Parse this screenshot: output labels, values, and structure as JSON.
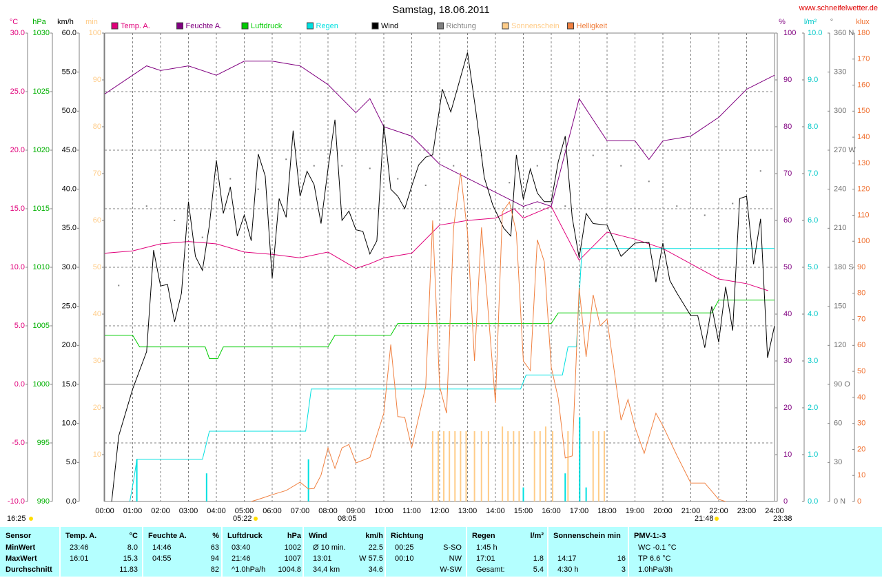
{
  "chart_data": {
    "type": "line",
    "title": "Samstag, 18.06.2011",
    "source": "www.schneifelwetter.de",
    "xlim": [
      0,
      24
    ],
    "xticks": [
      {
        "value": 0,
        "label": "00:00"
      },
      {
        "value": 1,
        "label": "01:00"
      },
      {
        "value": 2,
        "label": "02:00"
      },
      {
        "value": 3,
        "label": "03:00"
      },
      {
        "value": 4,
        "label": "04:00"
      },
      {
        "value": 5,
        "label": "05:00"
      },
      {
        "value": 6,
        "label": "06:00"
      },
      {
        "value": 7,
        "label": "07:00"
      },
      {
        "value": 8,
        "label": "08:00"
      },
      {
        "value": 9,
        "label": "09:00"
      },
      {
        "value": 10,
        "label": "10:00"
      },
      {
        "value": 11,
        "label": "11:00"
      },
      {
        "value": 12,
        "label": "12:00"
      },
      {
        "value": 13,
        "label": "13:00"
      },
      {
        "value": 14,
        "label": "14:00"
      },
      {
        "value": 15,
        "label": "15:00"
      },
      {
        "value": 16,
        "label": "16:00"
      },
      {
        "value": 17,
        "label": "17:00"
      },
      {
        "value": 18,
        "label": "18:00"
      },
      {
        "value": 19,
        "label": "19:00"
      },
      {
        "value": 20,
        "label": "20:00"
      },
      {
        "value": 21,
        "label": "21:00"
      },
      {
        "value": 22,
        "label": "22:00"
      },
      {
        "value": 23,
        "label": "23:00"
      },
      {
        "value": 24,
        "label": "24:00"
      }
    ],
    "grid": true,
    "annotations": [
      "16:25",
      "05:22",
      "08:05",
      "21:48",
      "23:38"
    ],
    "axes": {
      "temp": {
        "label": "°C",
        "color": "#e0007a",
        "lim": [
          -10,
          30
        ],
        "ticks": [
          {
            "value": -10,
            "label": "-10.0"
          },
          {
            "value": -5,
            "label": "-5.0"
          },
          {
            "value": 0,
            "label": "0.0"
          },
          {
            "value": 5,
            "label": "5.0"
          },
          {
            "value": 10,
            "label": "10.0"
          },
          {
            "value": 15,
            "label": "15.0"
          },
          {
            "value": 20,
            "label": "20.0"
          },
          {
            "value": 25,
            "label": "25.0"
          },
          {
            "value": 30,
            "label": "30.0"
          }
        ]
      },
      "hpa": {
        "label": "hPa",
        "color": "#00b000",
        "lim": [
          990,
          1030
        ],
        "ticks": [
          990,
          995,
          1000,
          1005,
          1010,
          1015,
          1020,
          1025,
          1030
        ]
      },
      "kmh": {
        "label": "km/h",
        "color": "#000000",
        "lim": [
          0,
          60
        ],
        "ticks": [
          {
            "value": 0,
            "label": "0.0"
          },
          {
            "value": 5,
            "label": "5.0"
          },
          {
            "value": 10,
            "label": "10.0"
          },
          {
            "value": 15,
            "label": "15.0"
          },
          {
            "value": 20,
            "label": "20.0"
          },
          {
            "value": 25,
            "label": "25.0"
          },
          {
            "value": 30,
            "label": "30.0"
          },
          {
            "value": 35,
            "label": "35.0"
          },
          {
            "value": 40,
            "label": "40.0"
          },
          {
            "value": 45,
            "label": "45.0"
          },
          {
            "value": 50,
            "label": "50.0"
          },
          {
            "value": 55,
            "label": "55.0"
          },
          {
            "value": 60,
            "label": "60.0"
          }
        ]
      },
      "min": {
        "label": "min",
        "color": "#ffcc88",
        "lim": [
          0,
          100
        ],
        "ticks": [
          10,
          20,
          30,
          40,
          50,
          60,
          70,
          80,
          90,
          100
        ]
      },
      "pct": {
        "label": "%",
        "color": "#800080",
        "lim": [
          0,
          100
        ],
        "ticks": [
          0,
          10,
          20,
          30,
          40,
          50,
          60,
          70,
          80,
          90,
          100
        ]
      },
      "lm2": {
        "label": "l/m²",
        "color": "#00c8c8",
        "lim": [
          0,
          10
        ],
        "ticks": [
          {
            "value": 0,
            "label": "0.0"
          },
          {
            "value": 1,
            "label": "1.0"
          },
          {
            "value": 2,
            "label": "2.0"
          },
          {
            "value": 3,
            "label": "3.0"
          },
          {
            "value": 4,
            "label": "4.0"
          },
          {
            "value": 5,
            "label": "5.0"
          },
          {
            "value": 6,
            "label": "6.0"
          },
          {
            "value": 7,
            "label": "7.0"
          },
          {
            "value": 8,
            "label": "8.0"
          },
          {
            "value": 9,
            "label": "9.0"
          },
          {
            "value": 10,
            "label": "10.0"
          }
        ]
      },
      "deg": {
        "label": "°",
        "color": "#707070",
        "lim": [
          0,
          360
        ],
        "ticks": [
          {
            "value": 0,
            "label": "0   N"
          },
          30,
          60,
          {
            "value": 90,
            "label": "90   O"
          },
          120,
          150,
          {
            "value": 180,
            "label": "180  S"
          },
          210,
          240,
          {
            "value": 270,
            "label": "270  W"
          },
          300,
          330,
          {
            "value": 360,
            "label": "360  N"
          }
        ]
      },
      "klux": {
        "label": "klux",
        "color": "#f07030",
        "lim": [
          0,
          180
        ],
        "ticks": [
          0,
          10,
          20,
          30,
          40,
          50,
          60,
          70,
          80,
          90,
          100,
          110,
          120,
          130,
          140,
          150,
          160,
          170,
          180
        ]
      }
    },
    "series": [
      {
        "name": "Temp. A.",
        "color": "#e0007a",
        "axis": "temp",
        "style": "line",
        "x": [
          0,
          1,
          2,
          3,
          4,
          5,
          6,
          7,
          8,
          9,
          9.5,
          10,
          11,
          12,
          13,
          14,
          14.67,
          15,
          16,
          17,
          18,
          19,
          20,
          21,
          22,
          23,
          23.77
        ],
        "values": [
          11.2,
          11.4,
          12.0,
          12.2,
          12.0,
          11.3,
          11.1,
          10.8,
          11.3,
          9.9,
          10.3,
          10.8,
          11.2,
          13.6,
          14.0,
          14.2,
          15.0,
          14.2,
          15.2,
          10.6,
          13.0,
          12.4,
          11.6,
          10.3,
          9.0,
          8.6,
          8.0
        ]
      },
      {
        "name": "Feuchte A.",
        "color": "#800080",
        "axis": "pct",
        "style": "line",
        "x": [
          0,
          1,
          1.5,
          2,
          3,
          4,
          5,
          6,
          7,
          8,
          9,
          9.5,
          10,
          11,
          12,
          13,
          14,
          15,
          15.5,
          16,
          17,
          18,
          19,
          19.5,
          20,
          21,
          22,
          23,
          24
        ],
        "values": [
          87,
          91,
          93,
          92,
          93,
          91,
          94,
          94,
          93,
          89,
          83,
          86,
          80,
          78,
          72,
          69,
          66,
          63,
          64,
          63,
          86,
          77,
          77,
          73,
          77,
          78,
          82,
          88,
          91
        ]
      },
      {
        "name": "Luftdruck",
        "color": "#00cc00",
        "axis": "hpa",
        "style": "line",
        "x": [
          0,
          1,
          1.25,
          3.6,
          3.75,
          4.05,
          4.25,
          8,
          8.25,
          10.25,
          10.5,
          16,
          16.25,
          21.75,
          22,
          24
        ],
        "values": [
          1004.2,
          1004.2,
          1003.2,
          1003.2,
          1002.2,
          1002.2,
          1003.2,
          1003.2,
          1004.2,
          1004.2,
          1005.2,
          1005.2,
          1006.1,
          1006.1,
          1007.2,
          1007.2
        ]
      },
      {
        "name": "Regen",
        "color": "#00e0e0",
        "axis": "lm2",
        "style": "line",
        "x": [
          0.9,
          1.05,
          1.15,
          3.5,
          3.75,
          7.2,
          7.4,
          14.9,
          15.1,
          16.4,
          16.6,
          16.9,
          17.1,
          24
        ],
        "values": [
          0,
          0.5,
          0.9,
          0.9,
          1.5,
          1.5,
          2.4,
          2.4,
          2.7,
          2.7,
          3.3,
          3.3,
          5.4,
          5.4
        ],
        "bars": {
          "x": [
            1.15,
            3.65,
            7.3,
            15.0,
            16.5,
            17.02,
            17.25
          ],
          "values": [
            0.9,
            0.6,
            0.9,
            0.3,
            0.6,
            1.8,
            0.3
          ]
        }
      },
      {
        "name": "Wind",
        "color": "#000000",
        "axis": "kmh",
        "style": "line",
        "x": [
          0.25,
          0.5,
          1,
          1.5,
          1.75,
          2,
          2.25,
          2.5,
          2.75,
          3,
          3.25,
          3.5,
          3.75,
          4,
          4.25,
          4.5,
          4.75,
          5,
          5.25,
          5.5,
          5.75,
          6,
          6.25,
          6.5,
          6.75,
          7,
          7.25,
          7.5,
          7.75,
          8,
          8.25,
          8.5,
          8.75,
          9,
          9.25,
          9.5,
          9.75,
          10,
          10.25,
          10.5,
          10.75,
          11,
          11.25,
          11.5,
          11.75,
          12.1,
          12.4,
          13,
          13.3,
          13.6,
          13.9,
          14.3,
          14.55,
          14.75,
          15,
          15.25,
          15.5,
          15.75,
          16,
          16.25,
          16.5,
          16.75,
          17,
          17.25,
          17.5,
          18,
          18.5,
          19,
          19.5,
          19.75,
          20,
          20.25,
          20.5,
          21,
          21.25,
          21.5,
          21.75,
          22,
          22.25,
          22.5,
          22.75,
          23,
          23.25,
          23.5,
          23.75,
          24
        ],
        "values": [
          0,
          8.4,
          14.4,
          19.2,
          32.2,
          27.6,
          27.8,
          23.0,
          26.7,
          38.4,
          31.4,
          29.6,
          35.4,
          43.7,
          36.9,
          40.3,
          34.0,
          36.7,
          33.4,
          44.5,
          41.7,
          28.6,
          38.8,
          36.4,
          47.5,
          39.1,
          42.3,
          40.6,
          35.6,
          42.6,
          48.9,
          36.0,
          37.2,
          34.8,
          34.6,
          31.7,
          33.4,
          48.3,
          40.0,
          39.1,
          37.5,
          40.4,
          43.1,
          44.1,
          44.4,
          52.8,
          49.9,
          57.5,
          50.0,
          41.5,
          38.0,
          35.0,
          34.0,
          44.4,
          38.7,
          42.6,
          39.5,
          38.4,
          38.4,
          43.5,
          46.8,
          36.4,
          31.2,
          36.9,
          35.6,
          35.4,
          31.4,
          33.1,
          33.2,
          28.1,
          33.1,
          28.3,
          26.7,
          23.8,
          23.8,
          19.7,
          25.0,
          20.4,
          27.5,
          21.9,
          38.8,
          39.1,
          30.4,
          36.2,
          18.4,
          22.5
        ]
      },
      {
        "name": "Richtung",
        "color": "#808080",
        "axis": "deg",
        "style": "dots",
        "x": [
          0.5,
          1.5,
          2.5,
          3.5,
          4.5,
          5.5,
          6.5,
          7.5,
          8.5,
          9.5,
          10.5,
          11.5,
          12.5,
          13.5,
          14.5,
          15.5,
          16.5,
          17.5,
          18.5,
          19.5,
          20.5,
          21.5,
          22.5,
          23.5
        ],
        "values": [
          166,
          227,
          216,
          203,
          248,
          240,
          263,
          258,
          258,
          256,
          248,
          243,
          258,
          266,
          245,
          258,
          227,
          266,
          258,
          246,
          227,
          220,
          229,
          254
        ]
      },
      {
        "name": "Sonnenschein",
        "color": "#ffcc88",
        "axis": "min",
        "style": "bars",
        "x": [
          11.75,
          11.95,
          12.15,
          12.35,
          12.55,
          12.75,
          12.95,
          13.25,
          13.5,
          13.75,
          14.25,
          14.45,
          14.65,
          14.85,
          15.4,
          15.6,
          15.8,
          16.05,
          16.6,
          17.5,
          17.7,
          17.9
        ],
        "values": [
          15,
          15,
          15,
          15,
          15,
          15,
          15,
          15,
          15,
          15,
          16,
          15,
          15,
          15,
          15,
          15,
          16,
          15,
          15,
          15,
          15,
          15
        ]
      },
      {
        "name": "Helligkeit",
        "color": "#f08040",
        "axis": "klux",
        "style": "line",
        "x": [
          5.25,
          5.5,
          6,
          6.5,
          7,
          7.3,
          7.5,
          7.75,
          8,
          8.25,
          8.5,
          8.75,
          9,
          9.5,
          10,
          10.25,
          10.5,
          10.75,
          11,
          11.5,
          11.75,
          12,
          12.25,
          12.5,
          12.75,
          13,
          13.25,
          13.5,
          14,
          14.25,
          14.5,
          14.75,
          15,
          15.25,
          15.5,
          15.75,
          16,
          16.25,
          16.5,
          16.75,
          17,
          17.25,
          17.5,
          17.75,
          18,
          18.5,
          18.75,
          19,
          19.33,
          19.75,
          20,
          20.5,
          21,
          21.5,
          22,
          22.25
        ],
        "values": [
          0,
          0.8,
          2.6,
          4.2,
          7.4,
          4.8,
          5.0,
          10.1,
          20.6,
          12.7,
          20.6,
          21.9,
          14.8,
          16.9,
          33.9,
          60.3,
          32.6,
          32.3,
          20.6,
          44.2,
          108.0,
          44.2,
          33.9,
          105.3,
          126.3,
          103.3,
          54.0,
          105.3,
          37.9,
          111.2,
          115.1,
          103.3,
          54.0,
          50.3,
          100.6,
          92.1,
          51.6,
          39.7,
          16.7,
          17.5,
          82.1,
          55.6,
          79.4,
          67.5,
          70.1,
          31.2,
          39.2,
          28.6,
          18.5,
          33.9,
          29.1,
          17.7,
          7.1,
          7.1,
          0.8,
          0
        ]
      }
    ]
  },
  "table": {
    "header": [
      {
        "left": "Sensor"
      },
      {
        "left": "Temp. A.",
        "right": "°C"
      },
      {
        "left": "Feuchte A.",
        "right": "%"
      },
      {
        "left": "Luftdruck",
        "right": "hPa"
      },
      {
        "left": "Wind",
        "right": "km/h"
      },
      {
        "left": "Richtung"
      },
      {
        "left": "Regen",
        "right": "l/m²"
      },
      {
        "left": "Sonnenschein min"
      },
      {
        "left": "PMV-1:-3"
      }
    ],
    "rows": [
      [
        {
          "left": "MinWert"
        },
        {
          "left": "23:46",
          "right": "8.0"
        },
        {
          "left": "14:46",
          "right": "63"
        },
        {
          "left": "03:40",
          "right": "1002"
        },
        {
          "left": "Ø 10 min.",
          "right": "22.5"
        },
        {
          "left": "00:25",
          "right": "S-SO"
        },
        {
          "left": "1:45 h"
        },
        {},
        {
          "left": "WC -0.1 °C"
        }
      ],
      [
        {
          "left": "MaxWert"
        },
        {
          "left": "16:01",
          "right": "15.3"
        },
        {
          "left": "04:55",
          "right": "94"
        },
        {
          "left": "21:46",
          "right": "1007"
        },
        {
          "left": "13:01",
          "right": "W 57.5"
        },
        {
          "left": "00:10",
          "right": "NW"
        },
        {
          "left": "17:01",
          "right": "1.8"
        },
        {
          "left": "14:17",
          "right": "16"
        },
        {
          "left": "TP 6.6 °C"
        }
      ],
      [
        {
          "left": "Durchschnitt"
        },
        {
          "right": "11.83"
        },
        {
          "right": "82"
        },
        {
          "left": "^1.0hPa/h",
          "right": "1004.8"
        },
        {
          "left": "34,4 km",
          "right": "34.6"
        },
        {
          "right": "W-SW"
        },
        {
          "left": "Gesamt:",
          "right": "5.4"
        },
        {
          "left": "4:30 h",
          "right": "3"
        },
        {
          "left": "1.0hPa/3h"
        }
      ]
    ]
  }
}
